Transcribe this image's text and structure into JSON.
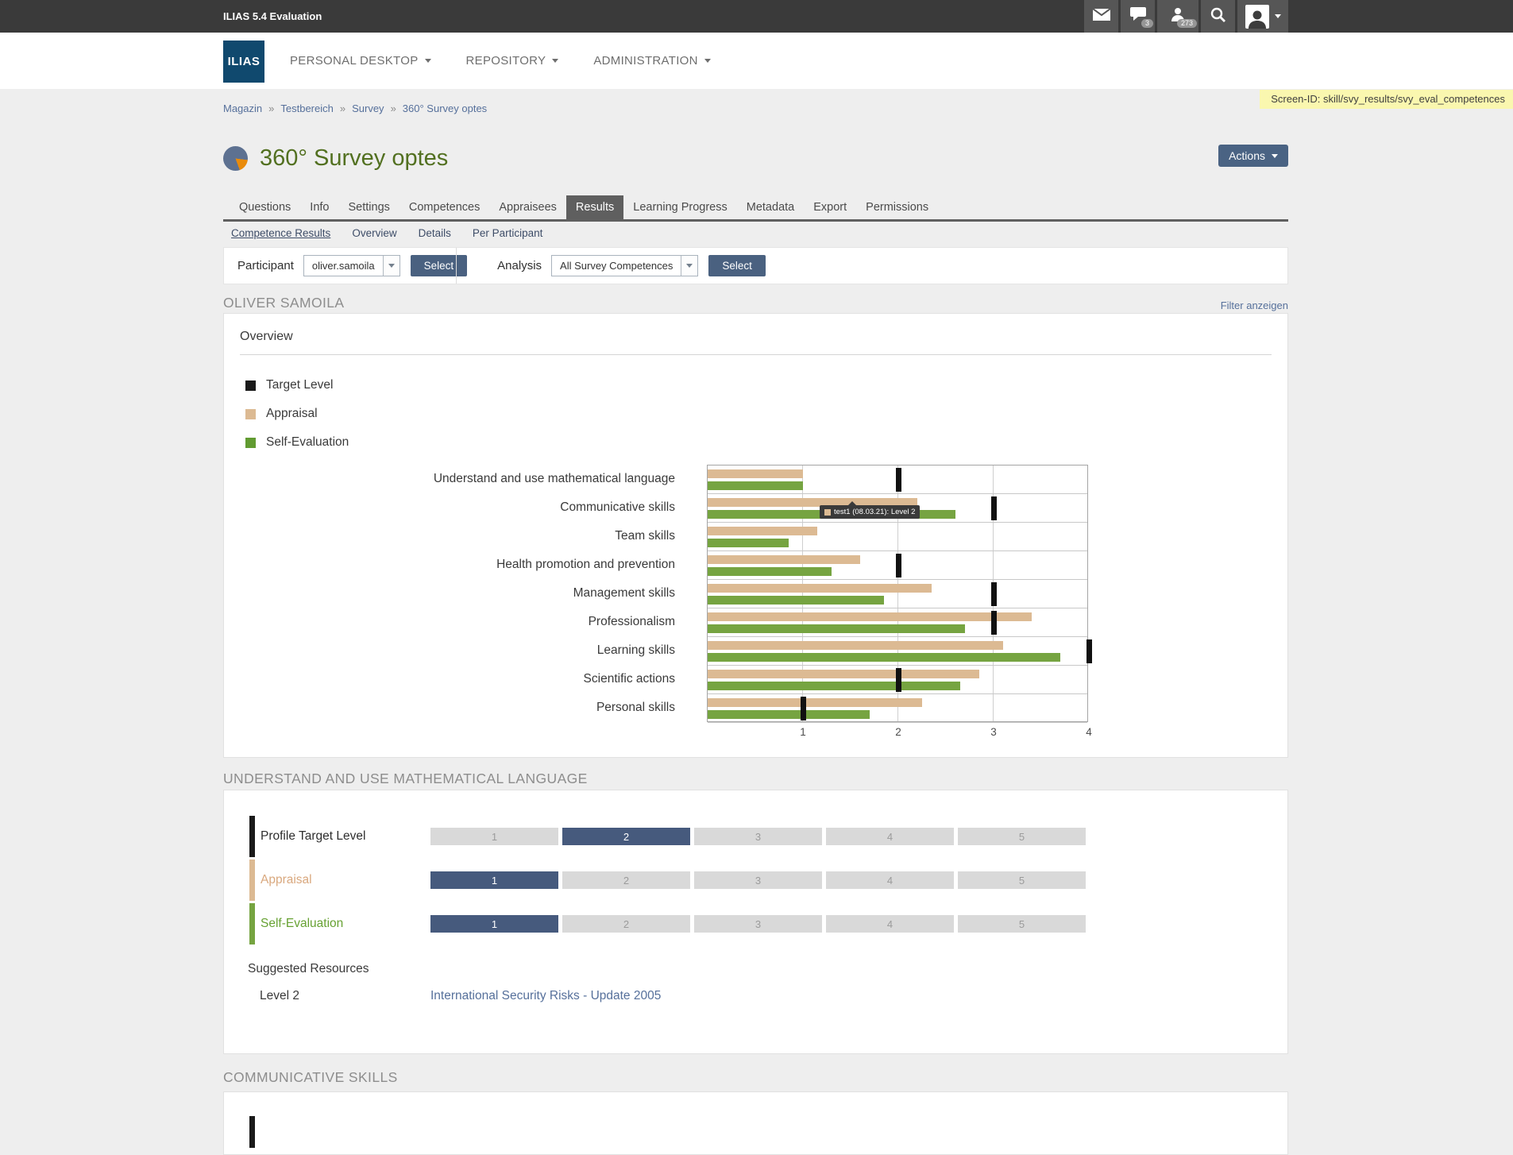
{
  "topbar": {
    "title": "ILIAS 5.4 Evaluation",
    "chat_badge": "3",
    "users_badge": "273"
  },
  "header": {
    "logo_text": "ILIAS",
    "nav": [
      {
        "label": "PERSONAL DESKTOP"
      },
      {
        "label": "REPOSITORY"
      },
      {
        "label": "ADMINISTRATION"
      }
    ]
  },
  "screen_id": "Screen-ID: skill/svy_results/svy_eval_competences",
  "breadcrumb": [
    "Magazin",
    "Testbereich",
    "Survey",
    "360° Survey optes"
  ],
  "page": {
    "title": "360° Survey optes",
    "actions_label": "Actions"
  },
  "tabs": [
    {
      "label": "Questions"
    },
    {
      "label": "Info"
    },
    {
      "label": "Settings"
    },
    {
      "label": "Competences"
    },
    {
      "label": "Appraisees"
    },
    {
      "label": "Results",
      "active": true
    },
    {
      "label": "Learning Progress"
    },
    {
      "label": "Metadata"
    },
    {
      "label": "Export"
    },
    {
      "label": "Permissions"
    }
  ],
  "subtabs": [
    {
      "label": "Competence Results",
      "active": true
    },
    {
      "label": "Overview"
    },
    {
      "label": "Details"
    },
    {
      "label": "Per Participant"
    }
  ],
  "toolbar": {
    "participant_label": "Participant",
    "participant_value": "oliver.samoila",
    "participant_select_label": "Select",
    "analysis_label": "Analysis",
    "analysis_value": "All Survey Competences",
    "analysis_select_label": "Select"
  },
  "results": {
    "user_heading": "OLIVER SAMOILA",
    "filter_link": "Filter anzeigen",
    "panel_title": "Overview",
    "legend": [
      {
        "label": "Target Level",
        "color": "#1a1a1a"
      },
      {
        "label": "Appraisal",
        "color": "#dcba93"
      },
      {
        "label": "Self-Evaluation",
        "color": "#619b31"
      }
    ]
  },
  "chart_data": {
    "type": "bar",
    "orientation": "horizontal",
    "title": "Overview",
    "categories": [
      "Understand and use mathematical language",
      "Communicative skills",
      "Team skills",
      "Health promotion and prevention",
      "Management skills",
      "Professionalism",
      "Learning skills",
      "Scientific actions",
      "Personal skills"
    ],
    "series": [
      {
        "name": "Appraisal",
        "color": "#dcba93",
        "values": [
          1.0,
          2.2,
          1.15,
          1.6,
          2.35,
          3.4,
          3.1,
          2.85,
          2.25
        ]
      },
      {
        "name": "Self-Evaluation",
        "color": "#76a441",
        "values": [
          1.0,
          2.6,
          0.85,
          1.3,
          1.85,
          2.7,
          3.7,
          2.65,
          1.7
        ]
      },
      {
        "name": "Target Level",
        "color": "#111111",
        "values": [
          2,
          3,
          null,
          2,
          3,
          3,
          4,
          2,
          1
        ]
      }
    ],
    "xlim": [
      0,
      4
    ],
    "ticks": [
      "1",
      "2",
      "3",
      "4"
    ],
    "grid": true,
    "legend_position": "top-left",
    "tooltip": {
      "category_index": 1,
      "series": "Appraisal",
      "text": "test1 (08.03.21): Level 2"
    }
  },
  "competence_section": {
    "heading": "UNDERSTAND AND USE MATHEMATICAL LANGUAGE",
    "active_cell_color": "#465a7d",
    "rows": [
      {
        "label": "Profile Target Level",
        "bar_color": "#1a1a1a",
        "label_color": "#2e2e2e",
        "levels": [
          "1",
          "2",
          "3",
          "4",
          "5"
        ],
        "selected": "2"
      },
      {
        "label": "Appraisal",
        "bar_color": "#dcba93",
        "label_color": "#d9a87e",
        "levels": [
          "1",
          "2",
          "3",
          "4",
          "5"
        ],
        "selected": "1"
      },
      {
        "label": "Self-Evaluation",
        "bar_color": "#76a441",
        "label_color": "#67a233",
        "levels": [
          "1",
          "2",
          "3",
          "4",
          "5"
        ],
        "selected": "1"
      }
    ],
    "suggested_title": "Suggested Resources",
    "suggested_level": "Level 2",
    "suggested_link": "International Security Risks - Update 2005"
  },
  "next_section": {
    "heading": "COMMUNICATIVE SKILLS"
  }
}
